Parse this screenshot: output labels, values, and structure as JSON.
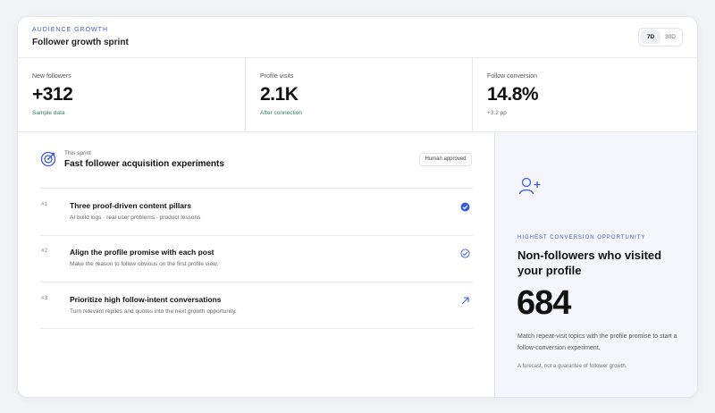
{
  "header": {
    "eyebrow": "AUDIENCE GROWTH",
    "title": "Follower growth sprint",
    "toggle": [
      "7D",
      "30D"
    ]
  },
  "stats": [
    {
      "label": "New followers",
      "value": "+312",
      "note": "Sample data"
    },
    {
      "label": "Profile visits",
      "value": "2.1K",
      "note": "After connection"
    },
    {
      "label": "Follow conversion",
      "value": "14.8%",
      "note": "+3.2 pp"
    }
  ],
  "sprint": {
    "eyebrow": "This sprint",
    "title": "Fast follower acquisition experiments",
    "badge": "Human approved",
    "items": [
      {
        "number": "#1",
        "title": "Three proof-driven content pillars",
        "description": "AI build logs · real user problems · product lessons"
      },
      {
        "number": "#2",
        "title": "Align the profile promise with each post",
        "description": "Make the reason to follow obvious on the first profile view."
      },
      {
        "number": "#3",
        "title": "Prioritize high follow-intent conversations",
        "description": "Turn relevant replies and quotes into the next growth opportunity."
      }
    ]
  },
  "opportunity": {
    "eyebrow": "HIGHEST CONVERSION OPPORTUNITY",
    "title": "Non-followers who visited your profile",
    "value": "684",
    "description": "Match repeat-visit topics with the profile promise to start a follow-conversion experiment.",
    "footnote": "A forecast, not a guarantee of follower growth."
  }
}
